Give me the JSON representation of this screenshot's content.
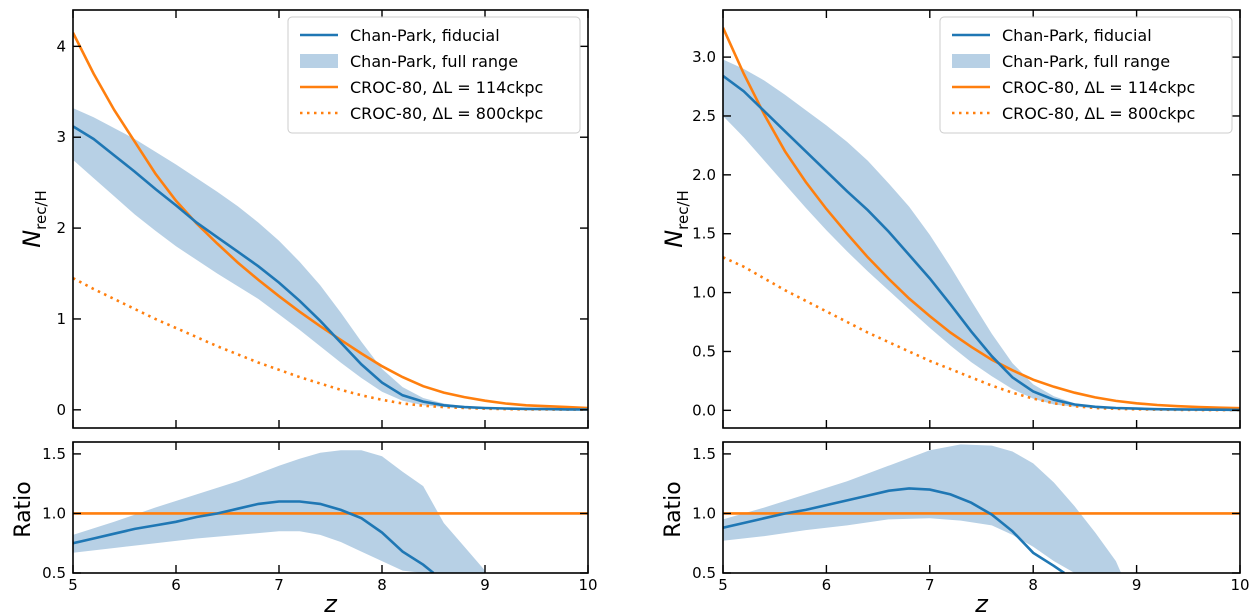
{
  "colors": {
    "fiducial": "#1f77b4",
    "band": "#b7d0e5",
    "croc": "#ff7f0e"
  },
  "chart_data": [
    {
      "type": "line",
      "xlabel": "z",
      "ylabel_main": "N",
      "ylabel_main_sub": "rec/H",
      "ylabel_ratio": "Ratio",
      "legend": [
        {
          "label": "Chan-Park, fiducial",
          "style": "line",
          "color": "#1f77b4"
        },
        {
          "label": "Chan-Park, full range",
          "style": "band",
          "color": "#b7d0e5"
        },
        {
          "label": "CROC-80, ΔL = 114ckpc",
          "style": "line",
          "color": "#ff7f0e"
        },
        {
          "label": "CROC-80, ΔL = 800ckpc",
          "style": "dotted",
          "color": "#ff7f0e"
        }
      ],
      "legend_position": "top-right",
      "xlim": [
        5,
        10
      ],
      "xticks": [
        "5",
        "6",
        "7",
        "8",
        "9",
        "10"
      ],
      "main": {
        "ylim": [
          -0.2,
          4.4
        ],
        "yticks": [
          0,
          1,
          2,
          3,
          4
        ],
        "ytick_labels": [
          "0",
          "1",
          "2",
          "3",
          "4"
        ],
        "x": [
          5.0,
          5.2,
          5.4,
          5.6,
          5.8,
          6.0,
          6.2,
          6.4,
          6.6,
          6.8,
          7.0,
          7.2,
          7.4,
          7.6,
          7.8,
          8.0,
          8.2,
          8.4,
          8.6,
          8.8,
          9.0,
          9.2,
          9.4,
          9.6,
          9.8,
          10.0
        ],
        "fiducial": [
          3.12,
          2.98,
          2.8,
          2.62,
          2.43,
          2.25,
          2.06,
          1.9,
          1.74,
          1.58,
          1.4,
          1.2,
          0.98,
          0.74,
          0.5,
          0.3,
          0.16,
          0.09,
          0.05,
          0.03,
          0.02,
          0.015,
          0.01,
          0.008,
          0.005,
          0.004
        ],
        "band_upper": [
          3.32,
          3.22,
          3.1,
          2.98,
          2.84,
          2.7,
          2.55,
          2.4,
          2.24,
          2.06,
          1.86,
          1.63,
          1.37,
          1.07,
          0.75,
          0.45,
          0.25,
          0.13,
          0.07,
          0.04,
          0.025,
          0.018,
          0.012,
          0.008,
          0.006,
          0.005
        ],
        "band_lower": [
          2.75,
          2.55,
          2.35,
          2.15,
          1.97,
          1.8,
          1.65,
          1.5,
          1.36,
          1.22,
          1.05,
          0.88,
          0.7,
          0.52,
          0.35,
          0.2,
          0.1,
          0.05,
          0.03,
          0.02,
          0.012,
          0.008,
          0.005,
          0.004,
          0.003,
          0.002
        ],
        "croc_114": [
          4.15,
          3.7,
          3.3,
          2.95,
          2.6,
          2.3,
          2.05,
          1.83,
          1.62,
          1.43,
          1.25,
          1.08,
          0.92,
          0.77,
          0.62,
          0.48,
          0.36,
          0.26,
          0.19,
          0.14,
          0.1,
          0.07,
          0.05,
          0.04,
          0.03,
          0.02
        ],
        "croc_800": [
          1.45,
          1.33,
          1.22,
          1.11,
          1.0,
          0.9,
          0.8,
          0.7,
          0.61,
          0.52,
          0.44,
          0.36,
          0.29,
          0.22,
          0.16,
          0.11,
          0.07,
          0.045,
          0.03,
          0.02,
          0.012,
          0.008,
          0.005,
          0.004,
          0.003,
          0.002
        ]
      },
      "ratio": {
        "ylim": [
          0.5,
          1.6
        ],
        "yticks": [
          0.5,
          1.0,
          1.5
        ],
        "ytick_labels": [
          "0.5",
          "1.0",
          "1.5"
        ],
        "reference": 1.0,
        "x": [
          5.0,
          5.2,
          5.4,
          5.6,
          5.8,
          6.0,
          6.2,
          6.4,
          6.6,
          6.8,
          7.0,
          7.2,
          7.4,
          7.6,
          7.8,
          8.0,
          8.2,
          8.4,
          8.5
        ],
        "fiducial": [
          0.75,
          0.79,
          0.83,
          0.87,
          0.9,
          0.93,
          0.97,
          1.0,
          1.04,
          1.08,
          1.1,
          1.1,
          1.08,
          1.03,
          0.96,
          0.84,
          0.68,
          0.57,
          0.5
        ],
        "band_x": [
          5.0,
          5.4,
          5.8,
          6.2,
          6.6,
          7.0,
          7.2,
          7.4,
          7.6,
          7.8,
          8.0,
          8.2,
          8.4,
          8.6,
          8.8,
          9.0
        ],
        "band_upper": [
          0.82,
          0.93,
          1.05,
          1.16,
          1.27,
          1.4,
          1.46,
          1.51,
          1.53,
          1.53,
          1.48,
          1.35,
          1.23,
          0.92,
          0.72,
          0.52
        ],
        "band_lower": [
          0.67,
          0.71,
          0.75,
          0.79,
          0.82,
          0.85,
          0.85,
          0.82,
          0.76,
          0.68,
          0.6,
          0.52,
          0.5,
          0.5,
          0.5,
          0.5
        ]
      }
    },
    {
      "type": "line",
      "xlabel": "z",
      "ylabel_main": "N",
      "ylabel_main_sub": "rec/H",
      "ylabel_ratio": "Ratio",
      "legend": [
        {
          "label": "Chan-Park, fiducial",
          "style": "line",
          "color": "#1f77b4"
        },
        {
          "label": "Chan-Park, full range",
          "style": "band",
          "color": "#b7d0e5"
        },
        {
          "label": "CROC-80, ΔL = 114ckpc",
          "style": "line",
          "color": "#ff7f0e"
        },
        {
          "label": "CROC-80, ΔL = 800ckpc",
          "style": "dotted",
          "color": "#ff7f0e"
        }
      ],
      "legend_position": "top-right",
      "xlim": [
        5,
        10
      ],
      "xticks": [
        "5",
        "6",
        "7",
        "8",
        "9",
        "10"
      ],
      "main": {
        "ylim": [
          -0.15,
          3.4
        ],
        "yticks": [
          0,
          0.5,
          1,
          1.5,
          2,
          2.5,
          3
        ],
        "ytick_labels": [
          "0.0",
          "0.5",
          "1.0",
          "1.5",
          "2.0",
          "2.5",
          "3.0"
        ],
        "x": [
          5.0,
          5.2,
          5.4,
          5.6,
          5.8,
          6.0,
          6.2,
          6.4,
          6.6,
          6.8,
          7.0,
          7.2,
          7.4,
          7.6,
          7.8,
          8.0,
          8.2,
          8.4,
          8.6,
          8.8,
          9.0,
          9.2,
          9.4,
          9.6,
          9.8,
          10.0
        ],
        "fiducial": [
          2.84,
          2.71,
          2.54,
          2.37,
          2.2,
          2.03,
          1.86,
          1.7,
          1.52,
          1.32,
          1.12,
          0.9,
          0.67,
          0.46,
          0.28,
          0.16,
          0.09,
          0.05,
          0.03,
          0.02,
          0.015,
          0.01,
          0.008,
          0.006,
          0.005,
          0.004
        ],
        "band_upper": [
          2.98,
          2.9,
          2.8,
          2.68,
          2.55,
          2.42,
          2.28,
          2.12,
          1.93,
          1.73,
          1.49,
          1.22,
          0.93,
          0.65,
          0.4,
          0.22,
          0.12,
          0.06,
          0.035,
          0.02,
          0.015,
          0.01,
          0.008,
          0.006,
          0.005,
          0.004
        ],
        "band_lower": [
          2.5,
          2.32,
          2.12,
          1.92,
          1.72,
          1.53,
          1.35,
          1.18,
          1.02,
          0.86,
          0.7,
          0.55,
          0.41,
          0.29,
          0.18,
          0.1,
          0.05,
          0.03,
          0.02,
          0.012,
          0.008,
          0.005,
          0.004,
          0.003,
          0.002,
          0.002
        ],
        "croc_114": [
          3.25,
          2.86,
          2.51,
          2.2,
          1.94,
          1.71,
          1.5,
          1.3,
          1.12,
          0.95,
          0.8,
          0.66,
          0.54,
          0.43,
          0.34,
          0.26,
          0.2,
          0.15,
          0.11,
          0.08,
          0.06,
          0.045,
          0.035,
          0.028,
          0.022,
          0.018
        ],
        "croc_800": [
          1.3,
          1.22,
          1.12,
          1.02,
          0.93,
          0.84,
          0.75,
          0.66,
          0.58,
          0.5,
          0.42,
          0.35,
          0.28,
          0.21,
          0.15,
          0.1,
          0.06,
          0.035,
          0.02,
          0.013,
          0.009,
          0.006,
          0.004,
          0.003,
          0.002,
          0.002
        ]
      },
      "ratio": {
        "ylim": [
          0.5,
          1.6
        ],
        "yticks": [
          0.5,
          1.0,
          1.5
        ],
        "ytick_labels": [
          "0.5",
          "1.0",
          "1.5"
        ],
        "reference": 1.0,
        "x": [
          5.0,
          5.2,
          5.4,
          5.6,
          5.8,
          6.0,
          6.2,
          6.4,
          6.6,
          6.8,
          7.0,
          7.2,
          7.4,
          7.6,
          7.8,
          8.0,
          8.2,
          8.3
        ],
        "fiducial": [
          0.88,
          0.92,
          0.96,
          1.0,
          1.03,
          1.07,
          1.11,
          1.15,
          1.19,
          1.21,
          1.2,
          1.16,
          1.09,
          0.99,
          0.85,
          0.67,
          0.56,
          0.5
        ],
        "band_x": [
          5.0,
          5.4,
          5.8,
          6.2,
          6.6,
          7.0,
          7.3,
          7.6,
          7.8,
          8.0,
          8.2,
          8.4,
          8.6,
          8.8,
          8.85
        ],
        "band_upper": [
          0.95,
          1.05,
          1.16,
          1.27,
          1.4,
          1.53,
          1.58,
          1.57,
          1.52,
          1.42,
          1.26,
          1.06,
          0.84,
          0.6,
          0.5
        ],
        "band_lower": [
          0.77,
          0.81,
          0.86,
          0.9,
          0.95,
          0.96,
          0.94,
          0.9,
          0.82,
          0.72,
          0.6,
          0.5,
          0.5,
          0.5,
          0.5
        ]
      }
    }
  ]
}
